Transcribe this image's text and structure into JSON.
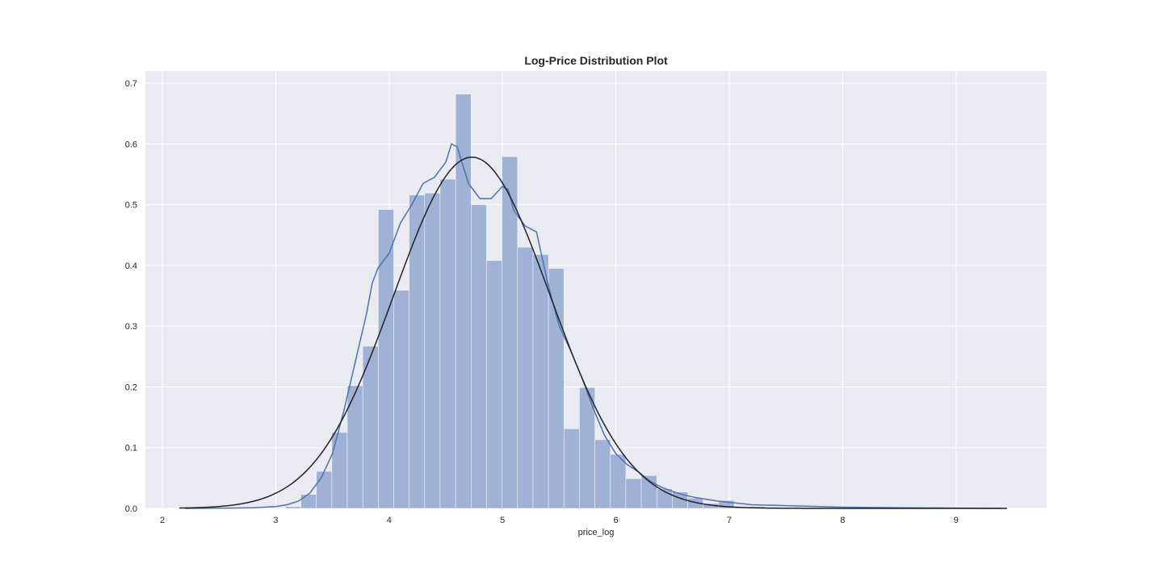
{
  "chart_data": {
    "type": "bar",
    "title": "Log-Price Distribution Plot",
    "xlabel": "price_log",
    "ylabel": "",
    "xlim": [
      1.85,
      9.8
    ],
    "ylim": [
      0,
      0.72
    ],
    "xticks": [
      2,
      3,
      4,
      5,
      6,
      7,
      8,
      9
    ],
    "yticks": [
      0.0,
      0.1,
      0.2,
      0.3,
      0.4,
      0.5,
      0.6,
      0.7
    ],
    "grid": true,
    "colors": {
      "background": "#eaeaf2",
      "bars": "#9fb1d4",
      "kde": "#4c72b0",
      "fit": "#222222",
      "grid": "#ffffff"
    },
    "bins": {
      "x_start": 3.085,
      "width": 0.1365,
      "values": [
        0.003,
        0.023,
        0.061,
        0.125,
        0.202,
        0.267,
        0.492,
        0.359,
        0.516,
        0.519,
        0.542,
        0.682,
        0.5,
        0.408,
        0.579,
        0.43,
        0.418,
        0.395,
        0.131,
        0.199,
        0.113,
        0.089,
        0.049,
        0.054,
        0.032,
        0.027,
        0.017,
        0.008,
        0.013,
        0.002,
        0.003,
        0.002,
        0.001
      ]
    },
    "kde": {
      "x": [
        2.2,
        2.6,
        2.8,
        3.0,
        3.1,
        3.2,
        3.3,
        3.4,
        3.5,
        3.6,
        3.7,
        3.8,
        3.85,
        3.9,
        4.0,
        4.1,
        4.2,
        4.3,
        4.4,
        4.5,
        4.55,
        4.6,
        4.7,
        4.8,
        4.9,
        5.0,
        5.05,
        5.1,
        5.2,
        5.3,
        5.4,
        5.5,
        5.6,
        5.7,
        5.8,
        5.9,
        6.0,
        6.1,
        6.2,
        6.3,
        6.4,
        6.5,
        6.6,
        6.7,
        6.8,
        6.9,
        7.0,
        7.2,
        7.4,
        7.6,
        8.0,
        8.5,
        9.0,
        9.4
      ],
      "y": [
        0.0,
        0.0005,
        0.001,
        0.003,
        0.006,
        0.012,
        0.025,
        0.05,
        0.09,
        0.16,
        0.24,
        0.32,
        0.37,
        0.395,
        0.42,
        0.47,
        0.5,
        0.535,
        0.545,
        0.57,
        0.6,
        0.595,
        0.535,
        0.51,
        0.51,
        0.53,
        0.525,
        0.49,
        0.465,
        0.455,
        0.37,
        0.3,
        0.26,
        0.215,
        0.165,
        0.12,
        0.09,
        0.072,
        0.06,
        0.045,
        0.035,
        0.028,
        0.022,
        0.018,
        0.015,
        0.012,
        0.01,
        0.006,
        0.005,
        0.004,
        0.002,
        0.001,
        0.0005,
        0.0
      ],
      "x_range": [
        2.15,
        9.45
      ]
    },
    "normal_fit": {
      "mean": 4.73,
      "std": 0.69,
      "x_range": [
        2.15,
        9.45
      ]
    }
  }
}
